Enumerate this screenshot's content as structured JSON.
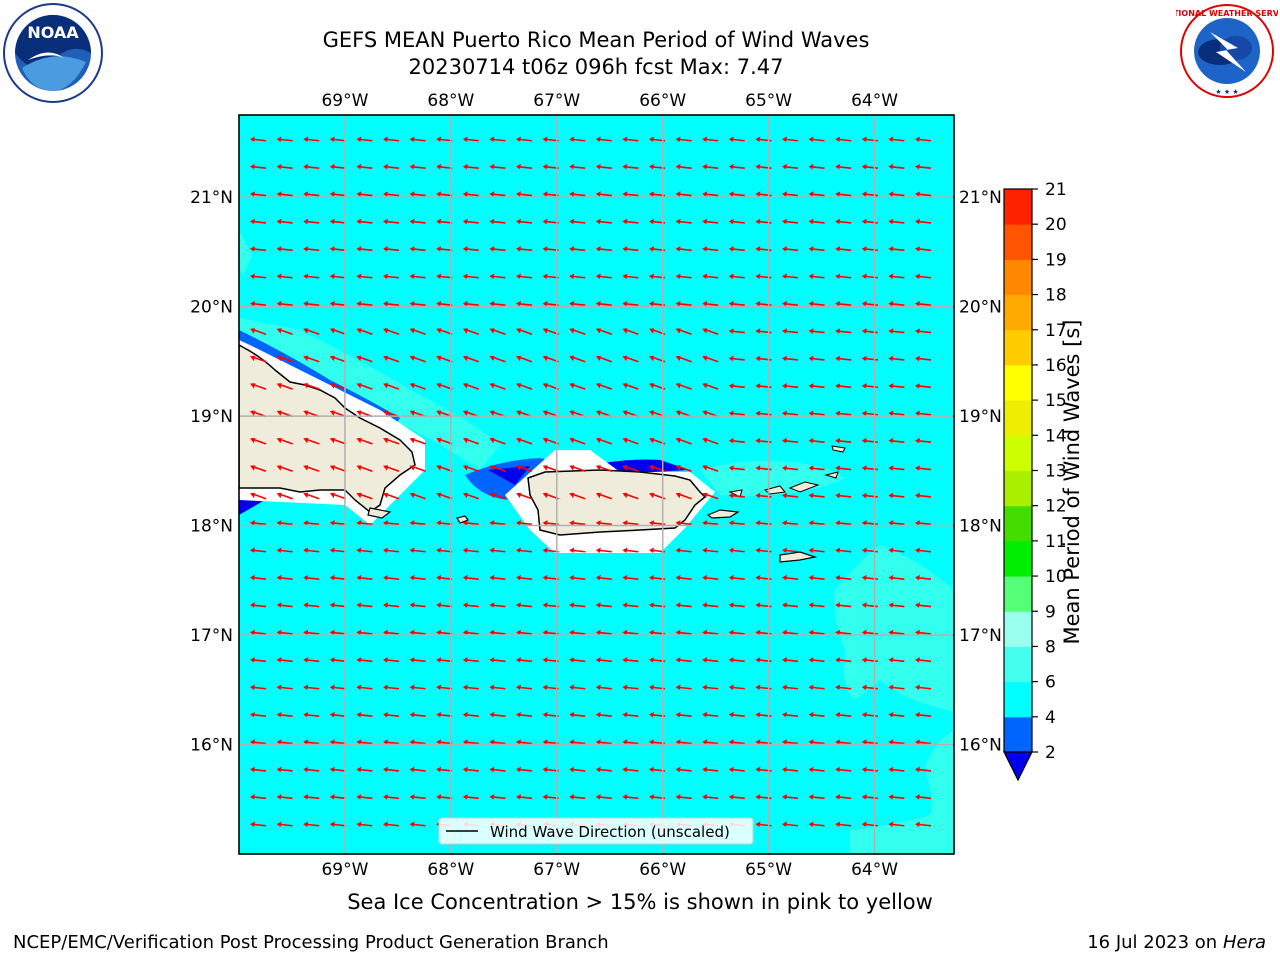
{
  "title": {
    "line1": "GEFS MEAN Puerto Rico Mean Period of Wind Waves",
    "line2": "20230714 t06z 096h fcst   Max: 7.47"
  },
  "logos": {
    "left": {
      "icon": "noaa-logo",
      "text": "NOAA"
    },
    "right": {
      "icon": "nws-logo",
      "text": "NATIONAL WEATHER SERVICE"
    }
  },
  "map": {
    "lon_ticks": [
      "69°W",
      "68°W",
      "67°W",
      "66°W",
      "65°W",
      "64°W"
    ],
    "lat_ticks": [
      "21°N",
      "20°N",
      "19°N",
      "18°N",
      "17°N",
      "16°N"
    ],
    "extent": {
      "lon_min": -70,
      "lon_max": -63.25,
      "lat_min": 15,
      "lat_max": 21.75
    },
    "ocean_color": "#00ffff",
    "land_color": "#f0ecdc",
    "arrow_color": "#ff0000",
    "arrow_direction": "toward west (easterly trade-wind waves)",
    "legend_label": "Wind Wave Direction (unscaled)"
  },
  "colorbar": {
    "label": "Mean Period of Wind Waves [s]",
    "levels": [
      2,
      4,
      6,
      8,
      9,
      10,
      11,
      12,
      13,
      14,
      15,
      16,
      17,
      18,
      19,
      20,
      21
    ],
    "tick_labels": [
      "2",
      "4",
      "6",
      "8",
      "9",
      "10",
      "11",
      "12",
      "13",
      "14",
      "15",
      "16",
      "17",
      "18",
      "19",
      "20",
      "21"
    ],
    "colors": [
      "#0064ff",
      "#00ffff",
      "#44ffee",
      "#99ffee",
      "#55ff77",
      "#00ee00",
      "#44dd00",
      "#aaee00",
      "#ccff00",
      "#eeee00",
      "#ffff00",
      "#ffcc00",
      "#ffaa00",
      "#ff8800",
      "#ff5500",
      "#ff2200"
    ],
    "under_color": "#0000ee",
    "extend": "min"
  },
  "notes": {
    "sea_ice": "Sea Ice Concentration > 15% is shown in pink to yellow",
    "branch": "NCEP/EMC/Verification Post Processing Product Generation Branch",
    "date_prefix": "16 Jul 2023 on ",
    "machine": "Hera"
  }
}
